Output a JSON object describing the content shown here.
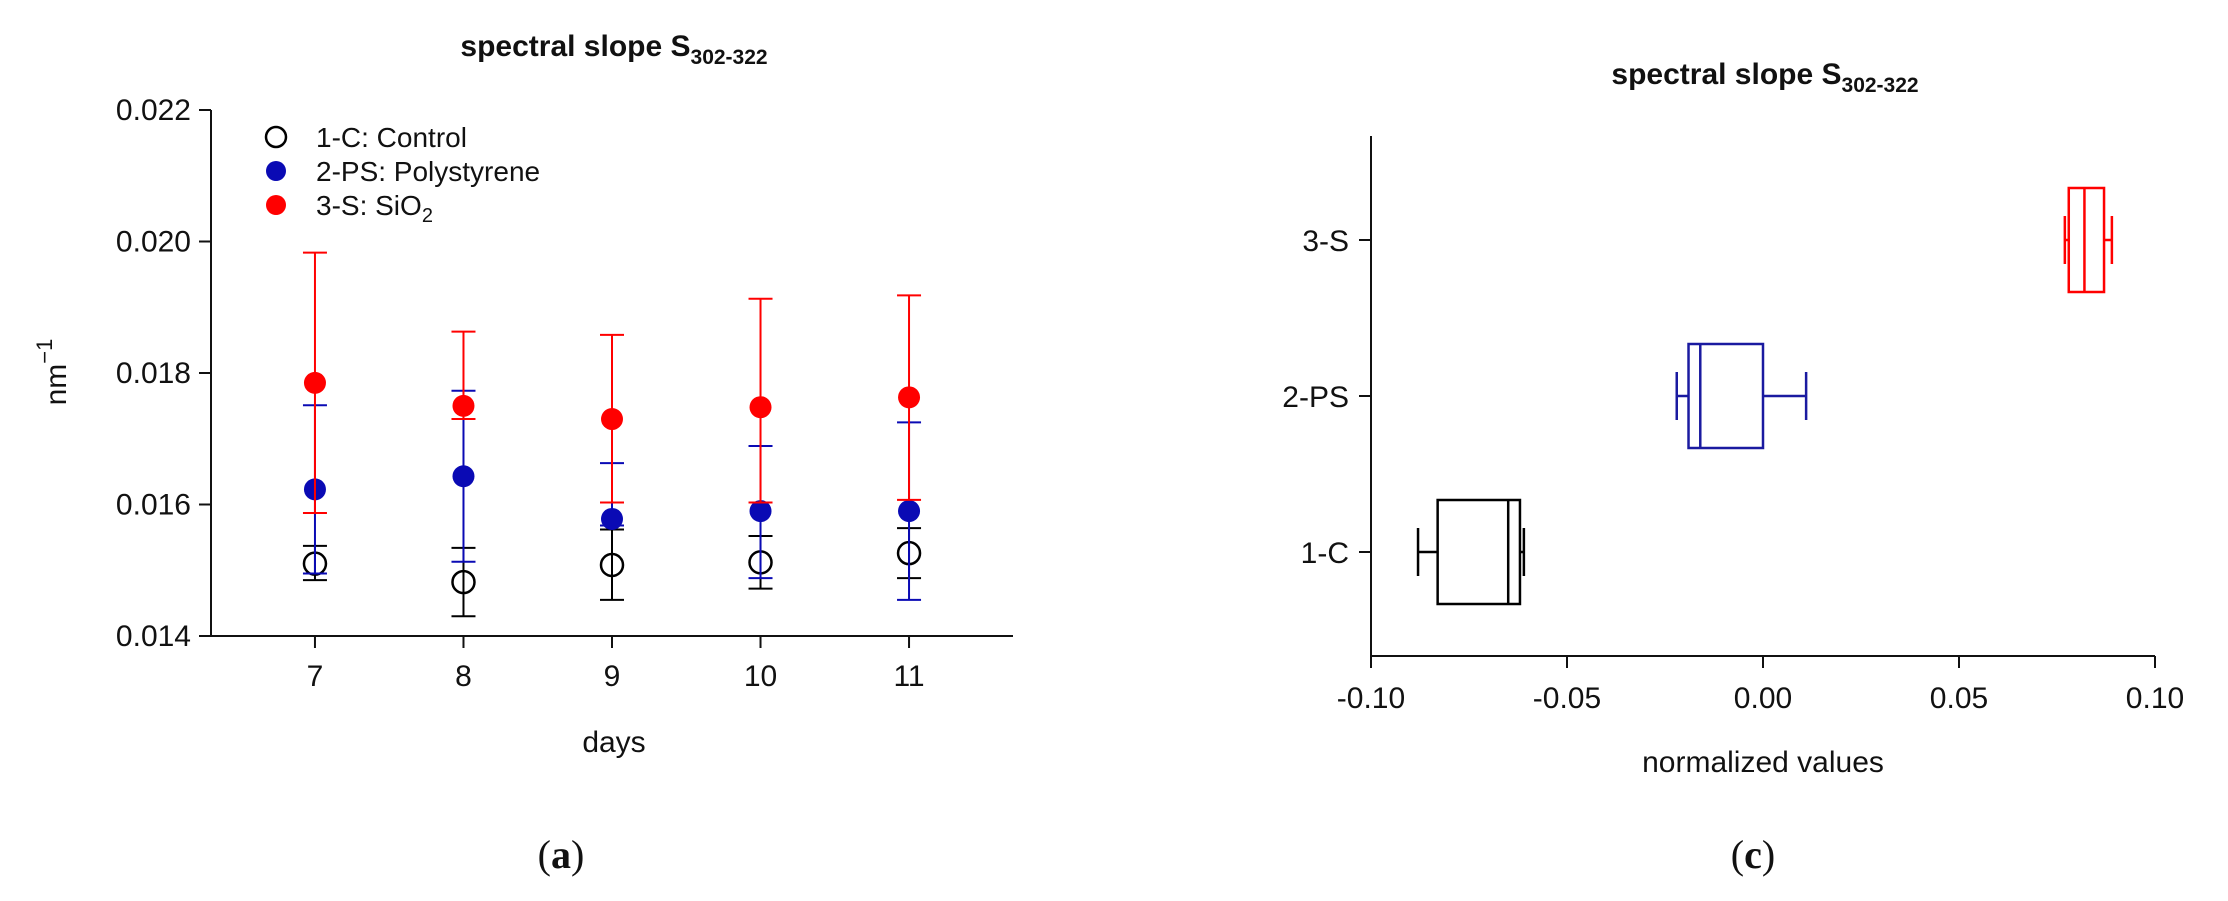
{
  "panel_labels": {
    "a": "a",
    "c": "c"
  },
  "chart_data": [
    {
      "type": "scatter",
      "title": "spectral slope S",
      "title_subscript": "302-322",
      "xlabel": "days",
      "ylabel": "nm",
      "ylabel_superscript": "−1",
      "x": [
        7,
        8,
        9,
        10,
        11
      ],
      "x_ticks": [
        "7",
        "8",
        "9",
        "10",
        "11"
      ],
      "xlim": [
        6.3,
        11.7
      ],
      "ylim": [
        0.014,
        0.022
      ],
      "y_ticks": [
        "0.014",
        "0.016",
        "0.018",
        "0.020",
        "0.022"
      ],
      "y_tick_values": [
        0.014,
        0.016,
        0.018,
        0.02,
        0.022
      ],
      "legend_position": "top-left",
      "series": [
        {
          "name": "1-C: Control",
          "marker": "open-circle",
          "color": "#000000",
          "values": [
            0.0151,
            0.01482,
            0.01508,
            0.01512,
            0.01526
          ],
          "err_low": [
            0.01485,
            0.0143,
            0.01455,
            0.01472,
            0.01488
          ],
          "err_high": [
            0.01537,
            0.01534,
            0.01562,
            0.01552,
            0.01564
          ]
        },
        {
          "name": "2-PS: Polystyrene",
          "marker": "filled-circle",
          "color": "#0a0ab4",
          "values": [
            0.01623,
            0.01643,
            0.01578,
            0.0159,
            0.0159
          ],
          "err_low": [
            0.01495,
            0.01513,
            0.01568,
            0.01488,
            0.01455
          ],
          "err_high": [
            0.01751,
            0.01773,
            0.01663,
            0.01689,
            0.01725
          ]
        },
        {
          "name": "3-S: SiO",
          "name_subscript": "2",
          "marker": "filled-circle",
          "color": "#ff0000",
          "values": [
            0.01785,
            0.0175,
            0.0173,
            0.01748,
            0.01763
          ],
          "err_low": [
            0.01587,
            0.0173,
            0.01603,
            0.01603,
            0.01607
          ],
          "err_high": [
            0.01983,
            0.01863,
            0.01858,
            0.01913,
            0.01918
          ]
        }
      ]
    },
    {
      "type": "box",
      "orientation": "horizontal",
      "title": "spectral slope S",
      "title_subscript": "302-322",
      "xlabel": "normalized values",
      "ylabel": "",
      "xlim": [
        -0.1,
        0.1
      ],
      "x_ticks": [
        "-0.10",
        "-0.05",
        "0.00",
        "0.05",
        "0.10"
      ],
      "x_tick_values": [
        -0.1,
        -0.05,
        0.0,
        0.05,
        0.1
      ],
      "categories": [
        "1-C",
        "2-PS",
        "3-S"
      ],
      "boxes": [
        {
          "category": "1-C",
          "color": "#000000",
          "min": -0.088,
          "q1": -0.083,
          "median": -0.065,
          "q3": -0.062,
          "max": -0.061
        },
        {
          "category": "2-PS",
          "color": "#1a1aa0",
          "min": -0.022,
          "q1": -0.019,
          "median": -0.016,
          "q3": 0.0,
          "max": 0.011
        },
        {
          "category": "3-S",
          "color": "#ff0000",
          "min": 0.077,
          "q1": 0.078,
          "median": 0.082,
          "q3": 0.087,
          "max": 0.089
        }
      ]
    }
  ]
}
